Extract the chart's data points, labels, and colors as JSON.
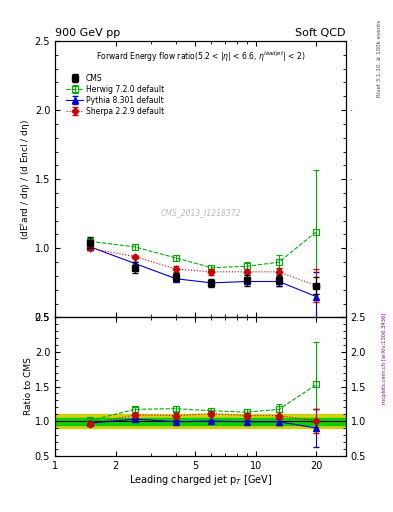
{
  "title_left": "900 GeV pp",
  "title_right": "Soft QCD",
  "ylabel_main": "(dE$^{t}$ard / dη) / (d Encl / dη)",
  "ylabel_ratio": "Ratio to CMS",
  "xlabel": "Leading charged jet p$_{T}$ [GeV]",
  "watermark": "CMS_2013_I1218372",
  "right_label": "mcplots.cern.ch [arXiv:1306.3436]",
  "rivet_label": "Rivet 3.1.10, ≥ 100k events",
  "cms_x": [
    1.5,
    2.5,
    4.0,
    6.0,
    9.0,
    13.0,
    20.0
  ],
  "cms_y": [
    1.04,
    0.86,
    0.79,
    0.75,
    0.77,
    0.77,
    0.73
  ],
  "cms_yerr": [
    0.04,
    0.04,
    0.03,
    0.03,
    0.04,
    0.04,
    0.06
  ],
  "herwig_x": [
    1.5,
    2.5,
    4.0,
    6.0,
    9.0,
    13.0,
    20.0
  ],
  "herwig_y": [
    1.05,
    1.01,
    0.93,
    0.86,
    0.87,
    0.9,
    1.12
  ],
  "herwig_yerr": [
    0.02,
    0.02,
    0.02,
    0.02,
    0.03,
    0.05,
    0.45
  ],
  "pythia_x": [
    1.5,
    2.5,
    4.0,
    6.0,
    9.0,
    13.0,
    20.0
  ],
  "pythia_y": [
    1.01,
    0.89,
    0.78,
    0.75,
    0.76,
    0.76,
    0.65
  ],
  "pythia_yerr": [
    0.01,
    0.01,
    0.01,
    0.01,
    0.02,
    0.03,
    0.18
  ],
  "sherpa_x": [
    1.5,
    2.5,
    4.0,
    6.0,
    9.0,
    13.0,
    20.0
  ],
  "sherpa_y": [
    1.0,
    0.94,
    0.85,
    0.83,
    0.83,
    0.83,
    0.73
  ],
  "sherpa_yerr": [
    0.01,
    0.01,
    0.02,
    0.02,
    0.02,
    0.03,
    0.12
  ],
  "ratio_herwig_y": [
    1.01,
    1.17,
    1.18,
    1.15,
    1.13,
    1.17,
    1.53
  ],
  "ratio_herwig_yerr": [
    0.04,
    0.04,
    0.04,
    0.04,
    0.05,
    0.08,
    0.62
  ],
  "ratio_pythia_y": [
    0.97,
    1.03,
    0.99,
    1.0,
    0.99,
    0.99,
    0.9
  ],
  "ratio_pythia_yerr": [
    0.02,
    0.02,
    0.02,
    0.02,
    0.03,
    0.05,
    0.27
  ],
  "ratio_sherpa_y": [
    0.96,
    1.09,
    1.08,
    1.11,
    1.08,
    1.08,
    1.0
  ],
  "ratio_sherpa_yerr": [
    0.02,
    0.03,
    0.04,
    0.04,
    0.04,
    0.05,
    0.17
  ],
  "cms_color": "#000000",
  "herwig_color": "#00aa00",
  "pythia_color": "#0000cc",
  "sherpa_color": "#cc0000",
  "band_green": "#00cc00",
  "band_yellow": "#cccc00",
  "ylim_main": [
    0.5,
    2.5
  ],
  "ylim_ratio": [
    0.5,
    2.5
  ],
  "xlim": [
    1.0,
    28.0
  ]
}
